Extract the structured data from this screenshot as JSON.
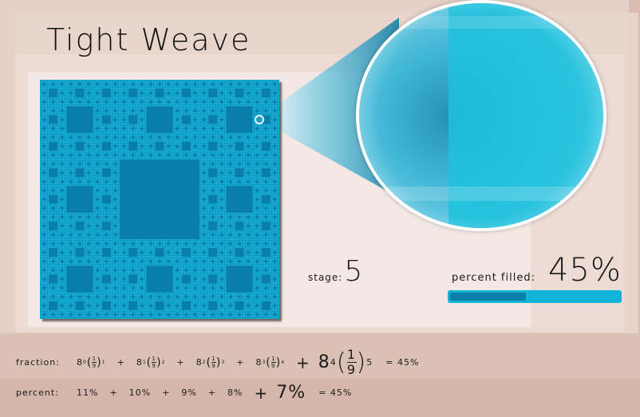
{
  "header": {
    "title": "Tight Weave"
  },
  "stage": {
    "label": "stage:",
    "value": "5"
  },
  "progress": {
    "label": "percent filled:",
    "value_text": "45%",
    "fraction": 0.45
  },
  "colors": {
    "carpet_light": "#16a9cf",
    "carpet_dark": "#0a7eaa",
    "lens_light": "#1fc1dd",
    "progress_bg": "#10b4d6",
    "progress_fill": "#0a7eaa"
  },
  "fraction_row": {
    "label": "fraction:",
    "terms": [
      {
        "base": "8",
        "exp": "0",
        "num": "1",
        "den": "9",
        "pow": "1"
      },
      {
        "base": "8",
        "exp": "1",
        "num": "1",
        "den": "9",
        "pow": "2"
      },
      {
        "base": "8",
        "exp": "2",
        "num": "1",
        "den": "9",
        "pow": "3"
      },
      {
        "base": "8",
        "exp": "3",
        "num": "1",
        "den": "9",
        "pow": "4"
      },
      {
        "base": "8",
        "exp": "4",
        "num": "1",
        "den": "9",
        "pow": "5"
      }
    ],
    "plus": "+",
    "total": "= 45%"
  },
  "percent_row": {
    "label": "percent:",
    "terms": [
      "11%",
      "10%",
      "9%",
      "8%",
      "7%"
    ],
    "plus": "+",
    "total": "= 45%"
  }
}
